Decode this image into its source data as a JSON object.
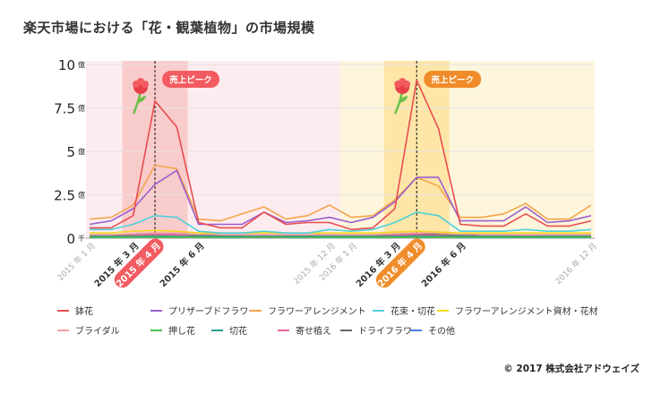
{
  "title": "楽天市場における「花・観葉植物」の市場規模",
  "copyright": "© 2017 株式会社アドウェイズ",
  "chart_data": {
    "type": "line",
    "title": "楽天市場における「花・観葉植物」の市場規模",
    "ylim": [
      0,
      10
    ],
    "y_unit_note": "億",
    "yticks": [
      {
        "value": 0,
        "num": "0",
        "unit": "千"
      },
      {
        "value": 2.5,
        "num": "2.5",
        "unit": "億"
      },
      {
        "value": 5,
        "num": "5",
        "unit": "億"
      },
      {
        "value": 7.5,
        "num": "7.5",
        "unit": "億"
      },
      {
        "value": 10,
        "num": "10",
        "unit": "億"
      }
    ],
    "x_count": 24,
    "x_tick_labels": [
      {
        "index": 0,
        "label": "2015 年 1 月",
        "style": "plain"
      },
      {
        "index": 2,
        "label": "2015 年 3 月",
        "style": "bold"
      },
      {
        "index": 3,
        "label": "2015 年 4 月",
        "style": "pill-red"
      },
      {
        "index": 5,
        "label": "2015 年 6 月",
        "style": "bold"
      },
      {
        "index": 11,
        "label": "2015 年 12 月",
        "style": "plain"
      },
      {
        "index": 12,
        "label": "2016 年 1 月",
        "style": "plain"
      },
      {
        "index": 14,
        "label": "2016 年 3 月",
        "style": "bold"
      },
      {
        "index": 15,
        "label": "2016 年 4 月",
        "style": "pill-orange"
      },
      {
        "index": 17,
        "label": "2016 年 6 月",
        "style": "bold"
      },
      {
        "index": 23,
        "label": "2016 年 12 月",
        "style": "plain"
      }
    ],
    "bands": [
      {
        "from": -0.5,
        "to": 11.5,
        "color": "#fdecef"
      },
      {
        "from": 11.5,
        "to": 23.5,
        "color": "#fdf6dc"
      },
      {
        "from": 1.5,
        "to": 4.5,
        "color": "#f9cccc"
      },
      {
        "from": 13.5,
        "to": 16.5,
        "color": "#fde6a8"
      }
    ],
    "annotations": [
      {
        "index": 3,
        "text": "売上ピーク",
        "color": "#f25c60"
      },
      {
        "index": 15,
        "text": "売上ピーク",
        "color": "#f08c2a"
      }
    ],
    "series": [
      {
        "name": "鉢花",
        "color": "#e84d50",
        "values": [
          0.6,
          0.6,
          1.3,
          7.9,
          6.4,
          0.9,
          0.6,
          0.6,
          1.5,
          0.8,
          0.9,
          0.9,
          0.5,
          0.6,
          1.7,
          9.1,
          6.3,
          0.8,
          0.7,
          0.7,
          1.4,
          0.7,
          0.7,
          1.0
        ]
      },
      {
        "name": "プリザーブドフラワー",
        "color": "#9a5fce",
        "values": [
          0.8,
          1.0,
          1.7,
          3.1,
          3.9,
          0.8,
          0.8,
          0.8,
          1.5,
          0.9,
          1.0,
          1.2,
          0.9,
          1.2,
          2.1,
          3.5,
          3.5,
          1.0,
          1.0,
          1.0,
          1.8,
          0.9,
          1.0,
          1.3
        ]
      },
      {
        "name": "フラワーアレンジメント",
        "color": "#f4a44a",
        "values": [
          1.1,
          1.2,
          1.9,
          4.2,
          4.0,
          1.1,
          1.0,
          1.4,
          1.8,
          1.1,
          1.3,
          1.9,
          1.2,
          1.3,
          2.2,
          3.5,
          3.0,
          1.2,
          1.2,
          1.4,
          2.0,
          1.1,
          1.1,
          1.9
        ]
      },
      {
        "name": "花束・切花",
        "color": "#4fd0d9",
        "values": [
          0.5,
          0.5,
          0.8,
          1.3,
          1.2,
          0.4,
          0.3,
          0.3,
          0.4,
          0.3,
          0.3,
          0.5,
          0.4,
          0.5,
          0.9,
          1.5,
          1.3,
          0.4,
          0.4,
          0.4,
          0.5,
          0.4,
          0.4,
          0.5
        ]
      },
      {
        "name": "フラワーアレンジメント資材・花材",
        "color": "#f3d81f",
        "values": [
          0.3,
          0.3,
          0.4,
          0.45,
          0.4,
          0.3,
          0.3,
          0.3,
          0.3,
          0.3,
          0.3,
          0.3,
          0.3,
          0.3,
          0.35,
          0.4,
          0.35,
          0.3,
          0.3,
          0.3,
          0.3,
          0.3,
          0.3,
          0.3
        ]
      },
      {
        "name": "ブライダル",
        "color": "#f2a0a0",
        "values": [
          0.2,
          0.2,
          0.25,
          0.3,
          0.3,
          0.25,
          0.2,
          0.2,
          0.2,
          0.2,
          0.2,
          0.2,
          0.2,
          0.2,
          0.25,
          0.3,
          0.3,
          0.25,
          0.2,
          0.2,
          0.2,
          0.2,
          0.2,
          0.2
        ]
      },
      {
        "name": "押し花",
        "color": "#48c247",
        "values": [
          0.05,
          0.05,
          0.05,
          0.05,
          0.05,
          0.05,
          0.05,
          0.05,
          0.05,
          0.05,
          0.05,
          0.05,
          0.05,
          0.05,
          0.05,
          0.05,
          0.05,
          0.05,
          0.05,
          0.05,
          0.05,
          0.05,
          0.05,
          0.05
        ]
      },
      {
        "name": "切花",
        "color": "#2a9d8f",
        "values": [
          0.1,
          0.1,
          0.1,
          0.12,
          0.1,
          0.1,
          0.1,
          0.1,
          0.1,
          0.1,
          0.1,
          0.1,
          0.1,
          0.1,
          0.1,
          0.12,
          0.1,
          0.1,
          0.1,
          0.1,
          0.1,
          0.1,
          0.1,
          0.1
        ]
      },
      {
        "name": "寄せ植え",
        "color": "#e6659b",
        "values": [
          0.1,
          0.1,
          0.15,
          0.2,
          0.2,
          0.1,
          0.1,
          0.1,
          0.15,
          0.1,
          0.1,
          0.1,
          0.1,
          0.1,
          0.15,
          0.2,
          0.15,
          0.1,
          0.1,
          0.1,
          0.15,
          0.1,
          0.1,
          0.1
        ]
      },
      {
        "name": "ドライフラワー",
        "color": "#666666",
        "values": [
          0.15,
          0.15,
          0.2,
          0.25,
          0.2,
          0.15,
          0.15,
          0.15,
          0.15,
          0.15,
          0.15,
          0.15,
          0.15,
          0.15,
          0.2,
          0.25,
          0.2,
          0.15,
          0.15,
          0.15,
          0.15,
          0.15,
          0.15,
          0.15
        ]
      },
      {
        "name": "その他",
        "color": "#4a7ee0",
        "values": [
          0.05,
          0.05,
          0.08,
          0.1,
          0.1,
          0.05,
          0.05,
          0.05,
          0.05,
          0.05,
          0.05,
          0.05,
          0.05,
          0.05,
          0.08,
          0.1,
          0.1,
          0.05,
          0.05,
          0.05,
          0.05,
          0.05,
          0.05,
          0.05
        ]
      }
    ]
  }
}
